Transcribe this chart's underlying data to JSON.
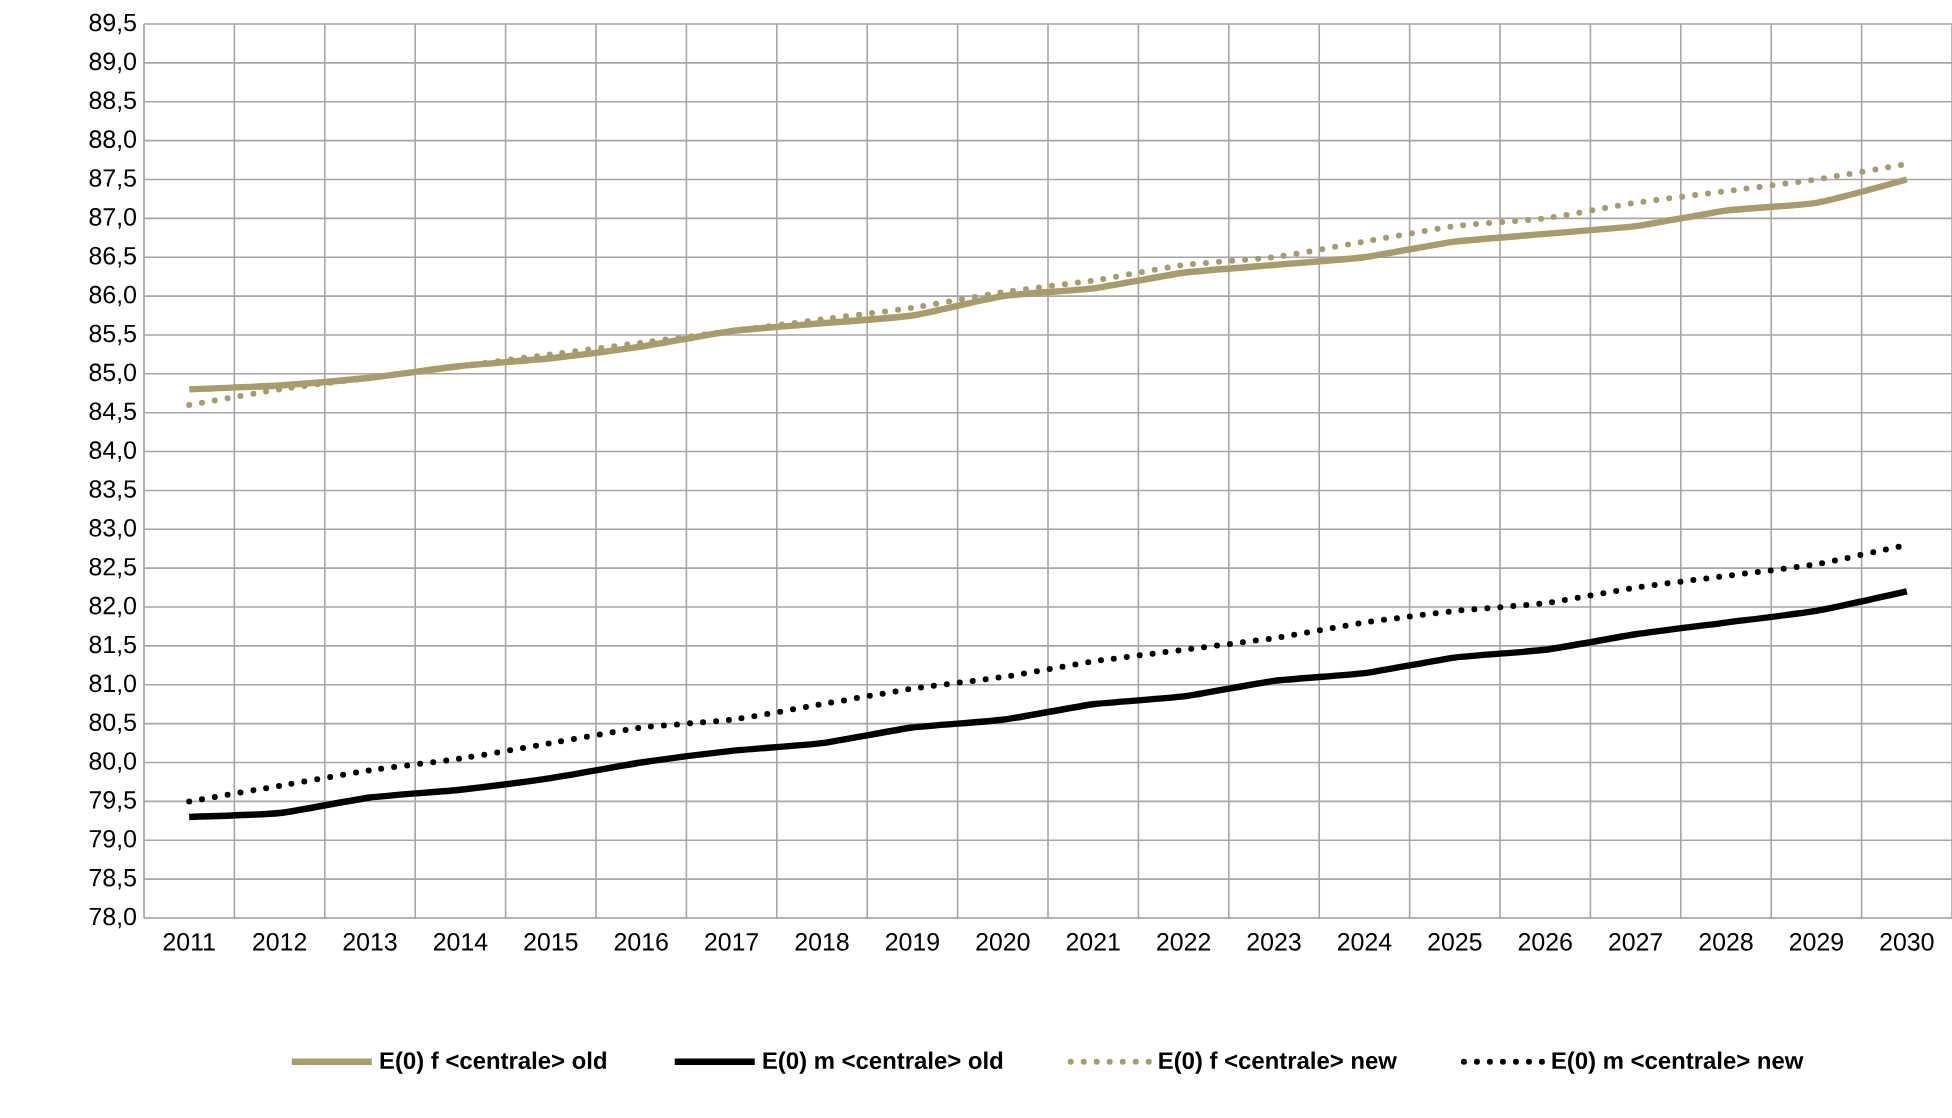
{
  "chart_data": {
    "type": "line",
    "categories": [
      "2011",
      "2012",
      "2013",
      "2014",
      "2015",
      "2016",
      "2017",
      "2018",
      "2019",
      "2020",
      "2021",
      "2022",
      "2023",
      "2024",
      "2025",
      "2026",
      "2027",
      "2028",
      "2029",
      "2030"
    ],
    "ylim": [
      78,
      89.5
    ],
    "yticks": [
      {
        "value": 78,
        "label": "78,0"
      },
      {
        "value": 78.5,
        "label": "78,5"
      },
      {
        "value": 79,
        "label": "79,0"
      },
      {
        "value": 79.5,
        "label": "79,5"
      },
      {
        "value": 80,
        "label": "80,0"
      },
      {
        "value": 80.5,
        "label": "80,5"
      },
      {
        "value": 81,
        "label": "81,0"
      },
      {
        "value": 81.5,
        "label": "81,5"
      },
      {
        "value": 82,
        "label": "82,0"
      },
      {
        "value": 82.5,
        "label": "82,5"
      },
      {
        "value": 83,
        "label": "83,0"
      },
      {
        "value": 83.5,
        "label": "83,5"
      },
      {
        "value": 84,
        "label": "84,0"
      },
      {
        "value": 84.5,
        "label": "84,5"
      },
      {
        "value": 85,
        "label": "85,0"
      },
      {
        "value": 85.5,
        "label": "85,5"
      },
      {
        "value": 86,
        "label": "86,0"
      },
      {
        "value": 86.5,
        "label": "86,5"
      },
      {
        "value": 87,
        "label": "87,0"
      },
      {
        "value": 87.5,
        "label": "87,5"
      },
      {
        "value": 88,
        "label": "88,0"
      },
      {
        "value": 88.5,
        "label": "88,5"
      },
      {
        "value": 89,
        "label": "89,0"
      },
      {
        "value": 89.5,
        "label": "89,5"
      }
    ],
    "grid": true,
    "legend": "bottom",
    "series": [
      {
        "name": "E(0) f <centrale> old",
        "color": "#a89c6a",
        "line_style": "solid",
        "values": [
          84.8,
          84.85,
          84.95,
          85.1,
          85.2,
          85.35,
          85.55,
          85.65,
          85.75,
          86.0,
          86.1,
          86.3,
          86.4,
          86.5,
          86.7,
          86.8,
          86.9,
          87.1,
          87.2,
          87.5
        ]
      },
      {
        "name": "E(0) m <centrale> old",
        "color": "#000000",
        "line_style": "solid",
        "values": [
          79.3,
          79.35,
          79.55,
          79.65,
          79.8,
          80.0,
          80.15,
          80.25,
          80.45,
          80.55,
          80.75,
          80.85,
          81.05,
          81.15,
          81.35,
          81.45,
          81.65,
          81.8,
          81.95,
          82.2
        ]
      },
      {
        "name": "E(0) f <centrale> new",
        "color": "#a89c6a",
        "line_style": "dotted",
        "values": [
          84.6,
          84.8,
          84.95,
          85.1,
          85.25,
          85.4,
          85.55,
          85.7,
          85.85,
          86.05,
          86.2,
          86.4,
          86.5,
          86.7,
          86.9,
          87.0,
          87.2,
          87.35,
          87.5,
          87.7
        ]
      },
      {
        "name": "E(0) m <centrale> new",
        "color": "#000000",
        "line_style": "dotted",
        "values": [
          79.5,
          79.7,
          79.9,
          80.05,
          80.25,
          80.45,
          80.55,
          80.75,
          80.95,
          81.1,
          81.3,
          81.45,
          81.6,
          81.8,
          81.95,
          82.05,
          82.25,
          82.4,
          82.55,
          82.8
        ]
      }
    ]
  }
}
